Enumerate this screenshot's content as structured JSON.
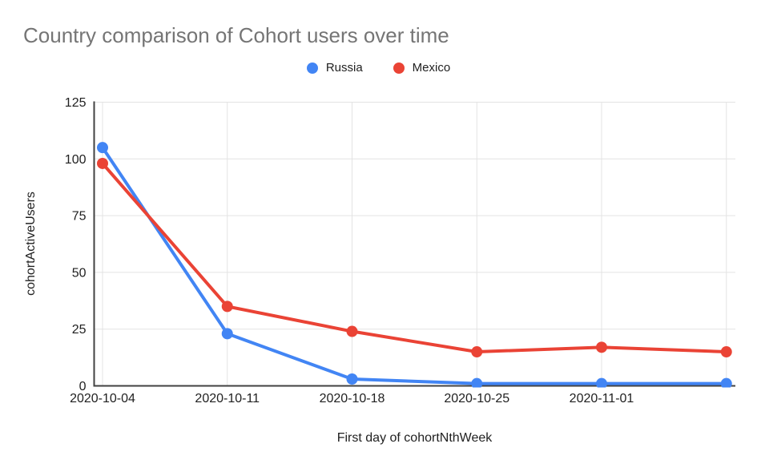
{
  "chart_data": {
    "type": "line",
    "title": "Country comparison of Cohort users over time",
    "xlabel": "First day of cohortNthWeek",
    "ylabel": "cohortActiveUsers",
    "x_tick_labels": [
      "2020-10-04",
      "2020-10-11",
      "2020-10-18",
      "2020-10-25",
      "2020-11-01",
      ""
    ],
    "y_ticks": [
      0,
      25,
      50,
      75,
      100,
      125
    ],
    "ylim": [
      0,
      125
    ],
    "grid": true,
    "legend_position": "top-center",
    "series": [
      {
        "name": "Russia",
        "color": "#4285F4",
        "values": [
          105,
          23,
          3,
          1,
          1,
          1
        ]
      },
      {
        "name": "Mexico",
        "color": "#EA4335",
        "values": [
          98,
          35,
          24,
          15,
          17,
          15
        ]
      }
    ],
    "colors": {
      "title": "#757575",
      "axis": "#424242",
      "gridline": "#e3e3e3",
      "tick_label": "#212121"
    }
  }
}
